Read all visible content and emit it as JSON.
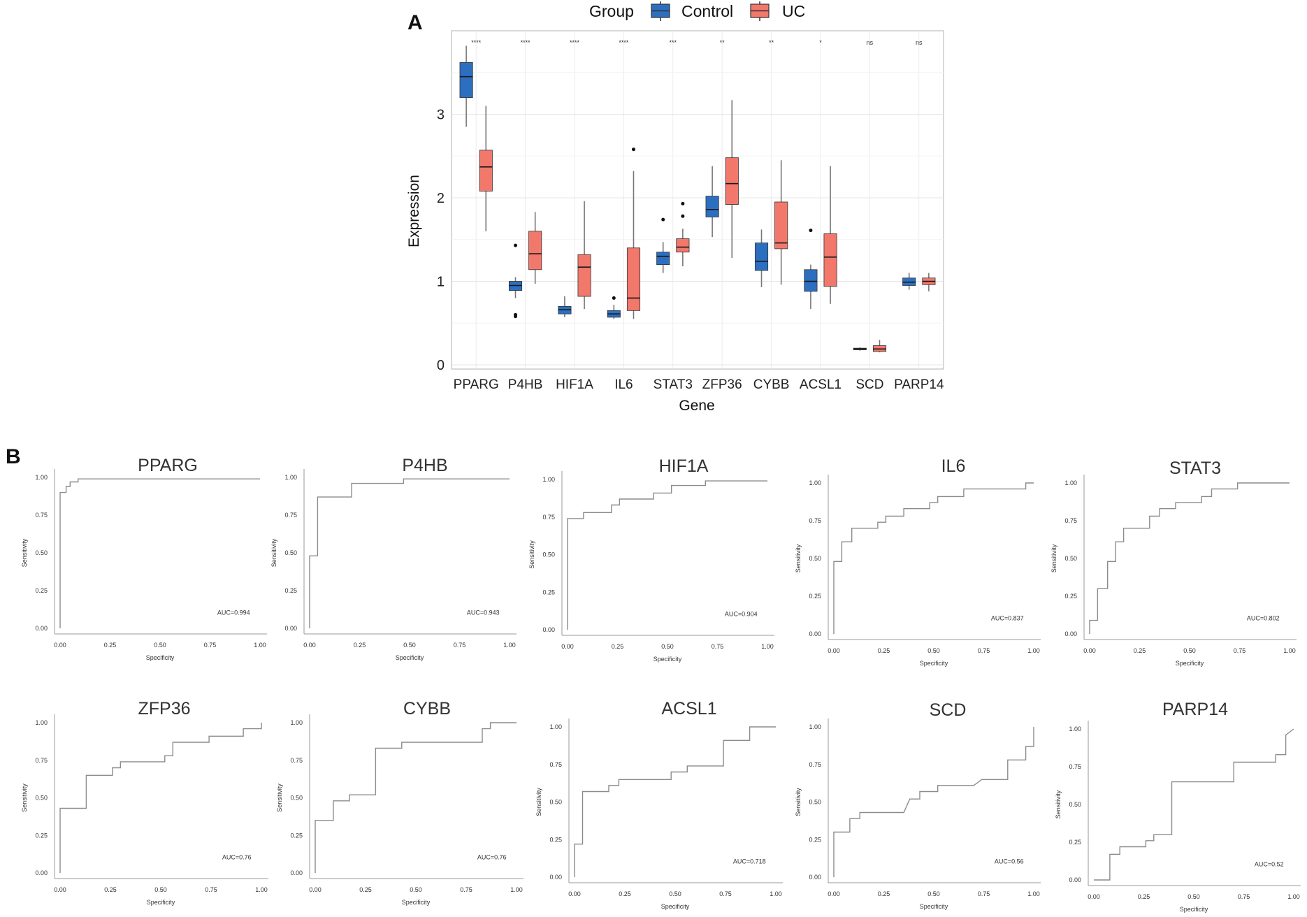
{
  "panel_a": {
    "letter": "A",
    "legend": {
      "title": "Group",
      "entries": [
        "Control",
        "UC"
      ]
    },
    "colors": {
      "control": "#2c6fc1",
      "uc": "#f2786c",
      "edge": "#333333",
      "whisker": "#777777"
    },
    "chart_data": {
      "type": "box",
      "xlabel": "Gene",
      "ylabel": "Expression",
      "ylim": [
        -0.05,
        4.0
      ],
      "yticks": [
        0,
        1,
        2,
        3
      ],
      "grid": true,
      "legend_position": "top",
      "categories": [
        "PPARG",
        "P4HB",
        "HIF1A",
        "IL6",
        "STAT3",
        "ZFP36",
        "CYBB",
        "ACSL1",
        "SCD",
        "PARP14"
      ],
      "significance": [
        "****",
        "****",
        "****",
        "****",
        "***",
        "**",
        "**",
        "*",
        "ns",
        "ns"
      ],
      "series": [
        {
          "name": "Control",
          "boxes": [
            {
              "min": 2.85,
              "q1": 3.2,
              "median": 3.45,
              "q3": 3.62,
              "max": 3.82,
              "outliers": []
            },
            {
              "min": 0.8,
              "q1": 0.89,
              "median": 0.95,
              "q3": 1.0,
              "max": 1.05,
              "outliers": [
                1.43,
                0.6,
                0.58
              ]
            },
            {
              "min": 0.57,
              "q1": 0.61,
              "median": 0.66,
              "q3": 0.7,
              "max": 0.82,
              "outliers": []
            },
            {
              "min": 0.55,
              "q1": 0.57,
              "median": 0.61,
              "q3": 0.65,
              "max": 0.72,
              "outliers": [
                0.8
              ]
            },
            {
              "min": 1.1,
              "q1": 1.2,
              "median": 1.3,
              "q3": 1.35,
              "max": 1.47,
              "outliers": [
                1.74
              ]
            },
            {
              "min": 1.53,
              "q1": 1.77,
              "median": 1.86,
              "q3": 2.02,
              "max": 2.38,
              "outliers": []
            },
            {
              "min": 0.93,
              "q1": 1.13,
              "median": 1.24,
              "q3": 1.46,
              "max": 1.62,
              "outliers": []
            },
            {
              "min": 0.67,
              "q1": 0.88,
              "median": 1.0,
              "q3": 1.14,
              "max": 1.2,
              "outliers": [
                1.61
              ]
            },
            {
              "min": 0.17,
              "q1": 0.18,
              "median": 0.19,
              "q3": 0.2,
              "max": 0.21,
              "outliers": []
            },
            {
              "min": 0.9,
              "q1": 0.95,
              "median": 0.99,
              "q3": 1.04,
              "max": 1.1,
              "outliers": []
            }
          ]
        },
        {
          "name": "UC",
          "boxes": [
            {
              "min": 1.6,
              "q1": 2.08,
              "median": 2.37,
              "q3": 2.57,
              "max": 3.1,
              "outliers": []
            },
            {
              "min": 0.97,
              "q1": 1.14,
              "median": 1.33,
              "q3": 1.6,
              "max": 1.83,
              "outliers": []
            },
            {
              "min": 0.67,
              "q1": 0.82,
              "median": 1.17,
              "q3": 1.32,
              "max": 1.96,
              "outliers": []
            },
            {
              "min": 0.55,
              "q1": 0.65,
              "median": 0.8,
              "q3": 1.4,
              "max": 2.32,
              "outliers": [
                2.58
              ]
            },
            {
              "min": 1.18,
              "q1": 1.35,
              "median": 1.41,
              "q3": 1.51,
              "max": 1.63,
              "outliers": [
                1.93,
                1.78
              ]
            },
            {
              "min": 1.28,
              "q1": 1.92,
              "median": 2.17,
              "q3": 2.48,
              "max": 3.17,
              "outliers": []
            },
            {
              "min": 0.96,
              "q1": 1.39,
              "median": 1.46,
              "q3": 1.95,
              "max": 2.45,
              "outliers": []
            },
            {
              "min": 0.73,
              "q1": 0.94,
              "median": 1.29,
              "q3": 1.57,
              "max": 2.38,
              "outliers": []
            },
            {
              "min": 0.15,
              "q1": 0.16,
              "median": 0.19,
              "q3": 0.23,
              "max": 0.3,
              "outliers": []
            },
            {
              "min": 0.88,
              "q1": 0.96,
              "median": 1.0,
              "q3": 1.04,
              "max": 1.1,
              "outliers": []
            }
          ]
        }
      ]
    }
  },
  "panel_b": {
    "letter": "B",
    "line_color": "#8c8c8c",
    "chart_data": [
      {
        "type": "line",
        "title": "PPARG",
        "xlabel": "Specificity",
        "ylabel": "Sensitivity",
        "xlim": [
          0,
          1
        ],
        "ylim": [
          0,
          1
        ],
        "ticks": [
          "0.00",
          "0.25",
          "0.50",
          "0.75",
          "1.00"
        ],
        "auc_label": "AUC=0.994",
        "x": [
          0,
          0,
          0.03,
          0.03,
          0.05,
          0.05,
          0.09,
          0.09,
          1.0
        ],
        "y": [
          0,
          0.9,
          0.9,
          0.94,
          0.94,
          0.97,
          0.97,
          0.99,
          0.99
        ]
      },
      {
        "type": "line",
        "title": "P4HB",
        "xlabel": "Specificity",
        "ylabel": "Sensitivity",
        "xlim": [
          0,
          1
        ],
        "ylim": [
          0,
          1
        ],
        "ticks": [
          "0.00",
          "0.25",
          "0.50",
          "0.75",
          "1.00"
        ],
        "auc_label": "AUC=0.943",
        "x": [
          0,
          0,
          0.04,
          0.04,
          0.21,
          0.21,
          0.47,
          0.47,
          1.0
        ],
        "y": [
          0,
          0.48,
          0.48,
          0.87,
          0.87,
          0.96,
          0.96,
          0.99,
          0.99
        ]
      },
      {
        "type": "line",
        "title": "HIF1A",
        "xlabel": "Specificity",
        "ylabel": "Sensitivity",
        "xlim": [
          0,
          1
        ],
        "ylim": [
          0,
          1
        ],
        "ticks": [
          "0.00",
          "0.25",
          "0.50",
          "0.75",
          "1.00"
        ],
        "auc_label": "AUC=0.904",
        "x": [
          0,
          0,
          0.08,
          0.08,
          0.22,
          0.22,
          0.26,
          0.26,
          0.43,
          0.43,
          0.52,
          0.52,
          0.69,
          0.69,
          1.0
        ],
        "y": [
          0,
          0.74,
          0.74,
          0.78,
          0.78,
          0.83,
          0.83,
          0.87,
          0.87,
          0.91,
          0.91,
          0.96,
          0.96,
          0.99,
          0.99
        ]
      },
      {
        "type": "line",
        "title": "IL6",
        "xlabel": "Specificity",
        "ylabel": "Sensitivity",
        "xlim": [
          0,
          1
        ],
        "ylim": [
          0,
          1
        ],
        "ticks": [
          "0.00",
          "0.25",
          "0.50",
          "0.75",
          "1.00"
        ],
        "auc_label": "AUC=0.837",
        "x": [
          0,
          0,
          0.04,
          0.04,
          0.09,
          0.09,
          0.22,
          0.22,
          0.26,
          0.26,
          0.35,
          0.35,
          0.48,
          0.48,
          0.52,
          0.52,
          0.65,
          0.65,
          0.96,
          0.96,
          1.0
        ],
        "y": [
          0,
          0.48,
          0.48,
          0.61,
          0.61,
          0.7,
          0.7,
          0.74,
          0.74,
          0.78,
          0.78,
          0.83,
          0.83,
          0.87,
          0.87,
          0.91,
          0.91,
          0.96,
          0.96,
          1.0,
          1.0
        ]
      },
      {
        "type": "line",
        "title": "STAT3",
        "xlabel": "Specificity",
        "ylabel": "Sensitivity",
        "xlim": [
          0,
          1
        ],
        "ylim": [
          0,
          1
        ],
        "ticks": [
          "0.00",
          "0.25",
          "0.50",
          "0.75",
          "1.00"
        ],
        "auc_label": "AUC=0.802",
        "x": [
          0,
          0,
          0.04,
          0.04,
          0.09,
          0.09,
          0.13,
          0.13,
          0.17,
          0.17,
          0.3,
          0.3,
          0.35,
          0.35,
          0.43,
          0.43,
          0.56,
          0.56,
          0.61,
          0.61,
          0.74,
          0.74,
          1.0
        ],
        "y": [
          0,
          0.09,
          0.09,
          0.3,
          0.3,
          0.48,
          0.48,
          0.61,
          0.61,
          0.7,
          0.7,
          0.78,
          0.78,
          0.83,
          0.83,
          0.87,
          0.87,
          0.91,
          0.91,
          0.96,
          0.96,
          1.0,
          1.0
        ]
      },
      {
        "type": "line",
        "title": "ZFP36",
        "xlabel": "Specificity",
        "ylabel": "Sensitivity",
        "xlim": [
          0,
          1
        ],
        "ylim": [
          0,
          1
        ],
        "ticks": [
          "0.00",
          "0.25",
          "0.50",
          "0.75",
          "1.00"
        ],
        "auc_label": "AUC=0.76",
        "x": [
          0,
          0,
          0.13,
          0.13,
          0.26,
          0.26,
          0.3,
          0.3,
          0.52,
          0.52,
          0.56,
          0.56,
          0.74,
          0.74,
          0.91,
          0.91,
          1.0,
          1.0
        ],
        "y": [
          0,
          0.43,
          0.43,
          0.65,
          0.65,
          0.7,
          0.7,
          0.74,
          0.74,
          0.78,
          0.78,
          0.87,
          0.87,
          0.91,
          0.91,
          0.96,
          0.96,
          1.0
        ]
      },
      {
        "type": "line",
        "title": "CYBB",
        "xlabel": "Specificity",
        "ylabel": "Sensitivity",
        "xlim": [
          0,
          1
        ],
        "ylim": [
          0,
          1
        ],
        "ticks": [
          "0.00",
          "0.25",
          "0.50",
          "0.75",
          "1.00"
        ],
        "auc_label": "AUC=0.76",
        "x": [
          0,
          0,
          0.09,
          0.09,
          0.17,
          0.17,
          0.3,
          0.3,
          0.43,
          0.43,
          0.83,
          0.83,
          0.87,
          0.87,
          1.0
        ],
        "y": [
          0,
          0.35,
          0.35,
          0.48,
          0.48,
          0.52,
          0.52,
          0.83,
          0.83,
          0.87,
          0.87,
          0.96,
          0.96,
          1.0,
          1.0
        ]
      },
      {
        "type": "line",
        "title": "ACSL1",
        "xlabel": "Specificity",
        "ylabel": "Sensitivity",
        "xlim": [
          0,
          1
        ],
        "ylim": [
          0,
          1
        ],
        "ticks": [
          "0.00",
          "0.25",
          "0.50",
          "0.75",
          "1.00"
        ],
        "auc_label": "AUC=0.718",
        "x": [
          0,
          0,
          0.04,
          0.04,
          0.17,
          0.17,
          0.22,
          0.22,
          0.48,
          0.48,
          0.56,
          0.56,
          0.74,
          0.74,
          0.87,
          0.87,
          1.0
        ],
        "y": [
          0,
          0.22,
          0.22,
          0.57,
          0.57,
          0.61,
          0.61,
          0.65,
          0.65,
          0.7,
          0.7,
          0.74,
          0.74,
          0.91,
          0.91,
          1.0,
          1.0
        ]
      },
      {
        "type": "line",
        "title": "SCD",
        "xlabel": "Specificity",
        "ylabel": "Sensitivity",
        "xlim": [
          0,
          1
        ],
        "ylim": [
          0,
          1
        ],
        "ticks": [
          "0.00",
          "0.25",
          "0.50",
          "0.75",
          "1.00"
        ],
        "auc_label": "AUC=0.56",
        "x": [
          0,
          0,
          0.08,
          0.08,
          0.13,
          0.13,
          0.22,
          0.22,
          0.35,
          0.38,
          0.43,
          0.43,
          0.48,
          0.48,
          0.52,
          0.52,
          0.7,
          0.74,
          0.87,
          0.87,
          0.96,
          0.96,
          1.0,
          1.0
        ],
        "y": [
          0,
          0.3,
          0.3,
          0.39,
          0.39,
          0.43,
          0.43,
          0.43,
          0.43,
          0.52,
          0.52,
          0.57,
          0.57,
          0.57,
          0.57,
          0.61,
          0.61,
          0.65,
          0.65,
          0.78,
          0.78,
          0.87,
          0.87,
          1.0
        ]
      },
      {
        "type": "line",
        "title": "PARP14",
        "xlabel": "Specificity",
        "ylabel": "Sensitivity",
        "xlim": [
          0,
          1
        ],
        "ylim": [
          0,
          1
        ],
        "ticks": [
          "0.00",
          "0.25",
          "0.50",
          "0.75",
          "1.00"
        ],
        "auc_label": "AUC=0.52",
        "x": [
          0,
          0.08,
          0.08,
          0.13,
          0.13,
          0.26,
          0.26,
          0.3,
          0.3,
          0.35,
          0.35,
          0.39,
          0.39,
          0.7,
          0.7,
          0.91,
          0.91,
          0.96,
          0.96,
          1.0
        ],
        "y": [
          0,
          0,
          0.17,
          0.17,
          0.22,
          0.22,
          0.26,
          0.26,
          0.3,
          0.3,
          0.3,
          0.3,
          0.65,
          0.65,
          0.78,
          0.78,
          0.83,
          0.83,
          0.96,
          1.0
        ]
      }
    ]
  }
}
